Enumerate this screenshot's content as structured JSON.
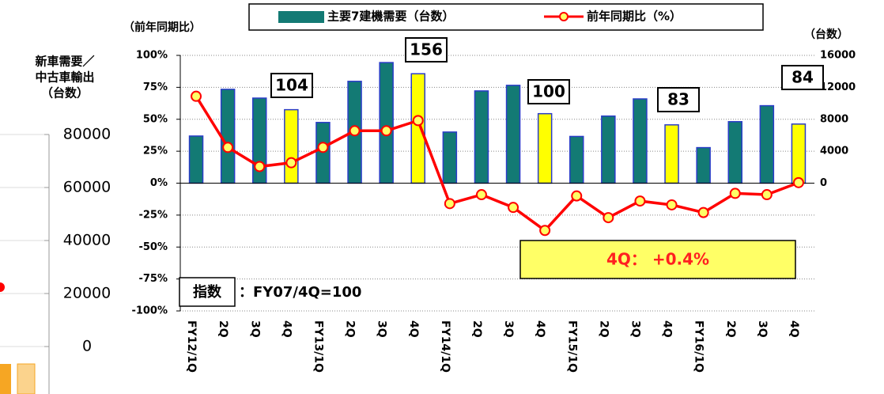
{
  "chart_data": {
    "type": "bar-line",
    "legend_position": "top",
    "ylabel": "（前年同期比）",
    "y2label": "（台数）",
    "categories": [
      "FY12/1Q",
      "2Q",
      "3Q",
      "4Q",
      "FY13/1Q",
      "2Q",
      "3Q",
      "4Q",
      "FY14/1Q",
      "2Q",
      "3Q",
      "4Q",
      "FY15/1Q",
      "2Q",
      "3Q",
      "4Q",
      "FY16/1Q",
      "2Q",
      "3Q",
      "4Q"
    ],
    "series": [
      {
        "name": "主要7建機需要（台数）",
        "type": "bar",
        "axis": "y2",
        "color": "#137a74",
        "edge_color": "#2a3cc8",
        "colors": [
          "#137a74",
          "#137a74",
          "#137a74",
          "#ffff00",
          "#137a74",
          "#137a74",
          "#137a74",
          "#ffff00",
          "#137a74",
          "#137a74",
          "#137a74",
          "#ffff00",
          "#137a74",
          "#137a74",
          "#137a74",
          "#ffff00",
          "#137a74",
          "#137a74",
          "#137a74",
          "#ffff00"
        ],
        "values": [
          5900,
          11750,
          10650,
          9200,
          7600,
          12750,
          15100,
          13700,
          6400,
          11550,
          12250,
          8700,
          5850,
          8400,
          10550,
          7300,
          4450,
          7700,
          9700,
          7400
        ]
      },
      {
        "name": "前年同期比（%）",
        "type": "line",
        "color": "#ff0000",
        "marker_color": "#ffff66",
        "values": [
          68,
          28,
          13,
          16,
          28,
          41,
          41,
          49,
          -16,
          -9,
          -19,
          -37,
          -10,
          -27,
          -14,
          -17,
          -23,
          -8,
          -9,
          0.4
        ]
      }
    ],
    "ylim": [
      -100,
      100
    ],
    "yticks": [
      {
        "value": -100,
        "label": "-100%"
      },
      {
        "value": -75,
        "label": "-75%"
      },
      {
        "value": -50,
        "label": "-50%"
      },
      {
        "value": -25,
        "label": "-25%"
      },
      {
        "value": 0,
        "label": "0%"
      },
      {
        "value": 25,
        "label": "25%"
      },
      {
        "value": 50,
        "label": "50%"
      },
      {
        "value": 75,
        "label": "75%"
      },
      {
        "value": 100,
        "label": "100%"
      }
    ],
    "y2lim": [
      -16000,
      16000
    ],
    "y2ticks": [
      0,
      4000,
      8000,
      12000,
      16000
    ],
    "grid": true,
    "annotations": [
      "104",
      "156",
      "100",
      "83",
      "84"
    ],
    "callout": "4Q： +0.4%",
    "index_label": "指数",
    "index_note": "：FY07/4Q=100"
  },
  "left_chart": {
    "ylabel_lines": [
      "新車需要／",
      "中古車輸出",
      "（台数）"
    ],
    "ylim": [
      0,
      80000
    ],
    "yticks": [
      0,
      20000,
      40000,
      60000,
      80000
    ]
  }
}
